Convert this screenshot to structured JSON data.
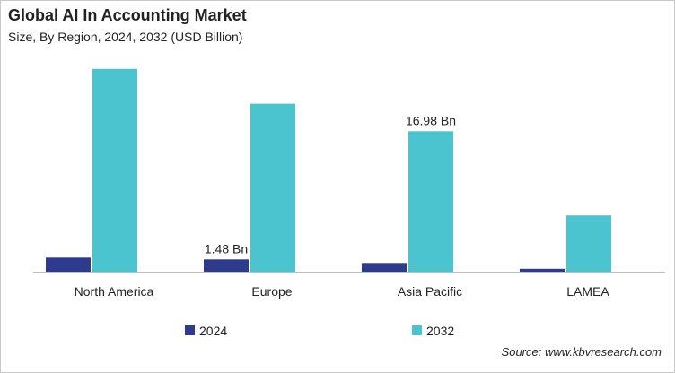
{
  "chart_title": "Global AI In Accounting Market",
  "chart_subtitle": "Size, By Region, 2024, 2032 (USD Billion)",
  "source": "Source: www.kbvresearch.com",
  "colors": {
    "series_2024": "#2e3a8c",
    "series_2032": "#4bc4cf",
    "axis": "#bfbfbf",
    "text": "#222222"
  },
  "chart_data": {
    "type": "bar",
    "title": "Global AI In Accounting Market",
    "subtitle": "Size, By Region, 2024, 2032 (USD Billion)",
    "categories": [
      "North America",
      "Europe",
      "Asia Pacific",
      "LAMEA"
    ],
    "series": [
      {
        "name": "2024",
        "values": [
          1.7,
          1.48,
          1.05,
          0.35
        ]
      },
      {
        "name": "2032",
        "values": [
          24.5,
          20.3,
          16.98,
          6.8
        ]
      }
    ],
    "data_labels": [
      {
        "series": 0,
        "category": 1,
        "text": "1.48 Bn"
      },
      {
        "series": 1,
        "category": 2,
        "text": "16.98 Bn"
      }
    ],
    "xlabel": "",
    "ylabel": "",
    "ylim": [
      0,
      26
    ],
    "grid": false,
    "legend": "bottom-center"
  }
}
